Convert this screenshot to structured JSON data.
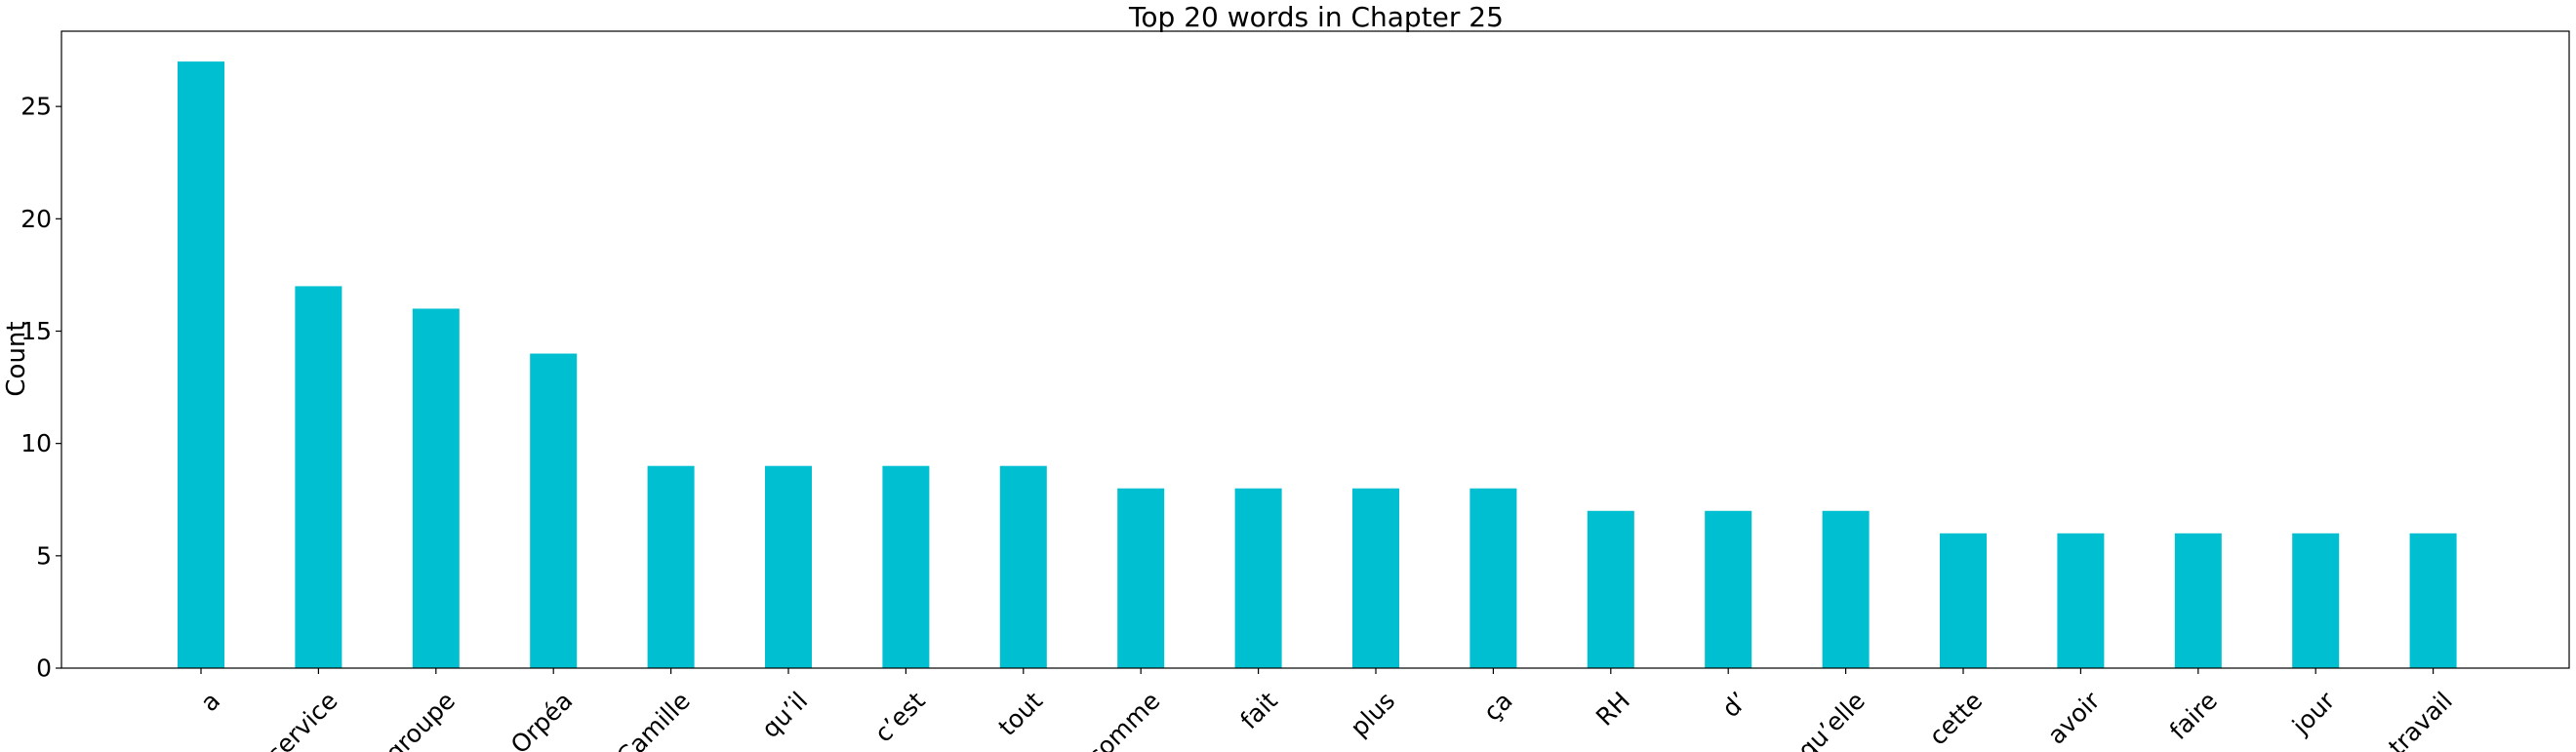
{
  "chart_data": {
    "type": "bar",
    "title": "Top 20 words in Chapter 25",
    "xlabel": "",
    "ylabel": "Count",
    "categories": [
      "a",
      "service",
      "groupe",
      "Orpéa",
      "Camille",
      "qu’il",
      "c’est",
      "tout",
      "comme",
      "fait",
      "plus",
      "ça",
      "RH",
      "d’",
      "qu’elle",
      "cette",
      "avoir",
      "faire",
      "jour",
      "travail"
    ],
    "values": [
      27,
      17,
      16,
      14,
      9,
      9,
      9,
      9,
      8,
      8,
      8,
      8,
      7,
      7,
      7,
      6,
      6,
      6,
      6,
      6
    ],
    "ylim": [
      0,
      28.35
    ],
    "yticks": [
      0,
      5,
      10,
      15,
      20,
      25
    ],
    "xtick_rotation": 45,
    "bar_color": "#00bfd0",
    "grid": false,
    "legend": "none"
  }
}
